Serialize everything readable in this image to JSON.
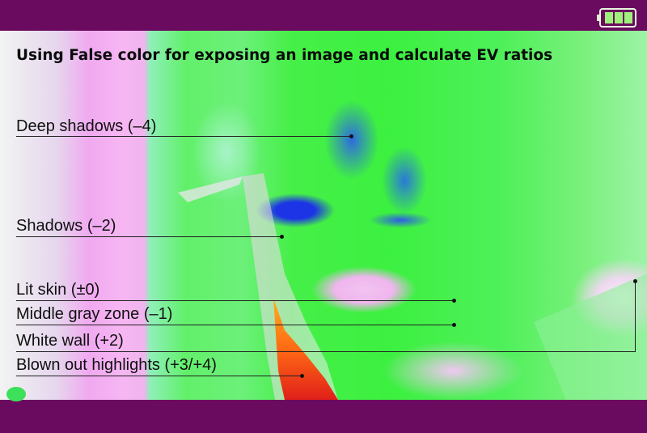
{
  "title": "Using False color for exposing an image and calculate EV ratios",
  "annotations": [
    {
      "id": "deep-shadows",
      "label": "Deep shadows (–4)"
    },
    {
      "id": "shadows",
      "label": "Shadows (–2)"
    },
    {
      "id": "lit-skin",
      "label": "Lit skin (±0)"
    },
    {
      "id": "middle-gray",
      "label": "Middle gray zone (–1)"
    },
    {
      "id": "white-wall",
      "label": "White wall (+2)"
    },
    {
      "id": "blown-highlights",
      "label": "Blown out highlights (+3/+4)"
    }
  ],
  "status": {
    "battery_icon": "battery-full-icon",
    "battery_level": 1.0
  },
  "colors": {
    "frame": "#6b0b5f",
    "green": "#3cf040",
    "pink": "#f0b4ee",
    "blue": "#1d34e6",
    "orange": "#ff5a1a",
    "battery": "#9ff07a"
  }
}
